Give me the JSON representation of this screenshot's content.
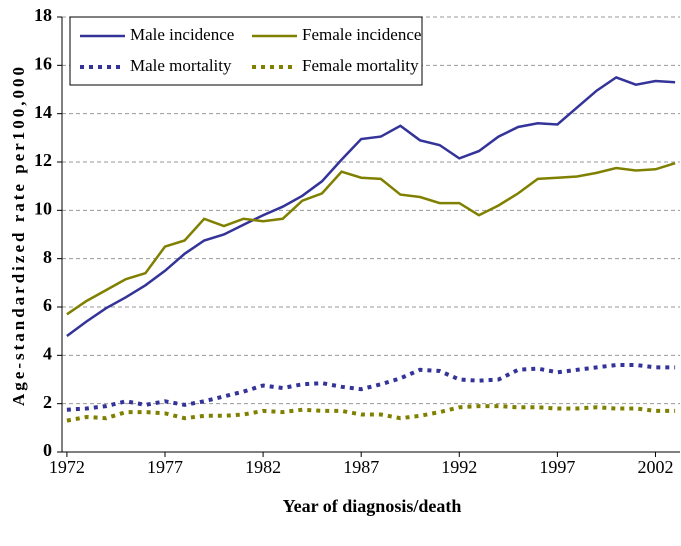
{
  "chart_data": {
    "type": "line",
    "x": [
      1972,
      1973,
      1974,
      1975,
      1976,
      1977,
      1978,
      1979,
      1980,
      1981,
      1982,
      1983,
      1984,
      1985,
      1986,
      1987,
      1988,
      1989,
      1990,
      1991,
      1992,
      1993,
      1994,
      1995,
      1996,
      1997,
      1998,
      1999,
      2000,
      2001,
      2002,
      2003
    ],
    "series": [
      {
        "name": "Male incidence",
        "color": "#333399",
        "dash": false,
        "values": [
          4.8,
          5.4,
          5.95,
          6.4,
          6.9,
          7.5,
          8.2,
          8.75,
          9.0,
          9.4,
          9.8,
          10.15,
          10.6,
          11.2,
          12.1,
          12.95,
          13.05,
          13.5,
          12.9,
          12.7,
          12.15,
          12.45,
          13.05,
          13.45,
          13.6,
          13.55,
          14.25,
          14.95,
          15.5,
          15.2,
          15.35,
          15.3
        ]
      },
      {
        "name": "Female incidence",
        "color": "#808000",
        "dash": false,
        "values": [
          5.7,
          6.25,
          6.7,
          7.15,
          7.4,
          8.5,
          8.75,
          9.65,
          9.35,
          9.65,
          9.55,
          9.65,
          10.4,
          10.7,
          11.6,
          11.35,
          11.3,
          10.65,
          10.55,
          10.3,
          10.3,
          9.8,
          10.2,
          10.7,
          11.3,
          11.35,
          11.4,
          11.55,
          11.75,
          11.65,
          11.7,
          11.95
        ]
      },
      {
        "name": "Male mortality",
        "color": "#333399",
        "dash": true,
        "values": [
          1.75,
          1.8,
          1.9,
          2.1,
          1.95,
          2.1,
          1.95,
          2.1,
          2.3,
          2.5,
          2.75,
          2.65,
          2.8,
          2.85,
          2.7,
          2.6,
          2.8,
          3.05,
          3.4,
          3.35,
          3.0,
          2.95,
          3.0,
          3.4,
          3.45,
          3.3,
          3.4,
          3.5,
          3.6,
          3.6,
          3.5,
          3.5
        ]
      },
      {
        "name": "Female mortality",
        "color": "#808000",
        "dash": true,
        "values": [
          1.3,
          1.45,
          1.4,
          1.65,
          1.65,
          1.6,
          1.4,
          1.5,
          1.5,
          1.55,
          1.7,
          1.65,
          1.75,
          1.7,
          1.7,
          1.55,
          1.55,
          1.4,
          1.5,
          1.65,
          1.85,
          1.9,
          1.9,
          1.85,
          1.85,
          1.8,
          1.8,
          1.85,
          1.8,
          1.8,
          1.7,
          1.7
        ]
      }
    ],
    "xlim": [
      1971.75,
      2003.25
    ],
    "xticks": [
      1972,
      1977,
      1982,
      1987,
      1992,
      1997,
      2002
    ],
    "ylim": [
      0,
      18
    ],
    "yticks": [
      0,
      2,
      4,
      6,
      8,
      10,
      12,
      14,
      16,
      18
    ],
    "xlabel": "Year of diagnosis/death",
    "ylabel": "Age-standardized rate per100,000",
    "grid": true,
    "legend": "upper left"
  }
}
